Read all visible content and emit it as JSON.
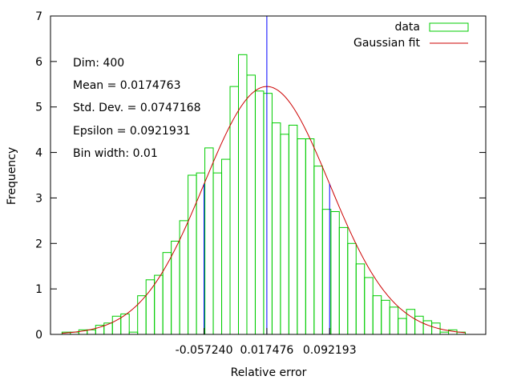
{
  "chart_data": {
    "type": "bar",
    "xlabel": "Relative error",
    "ylabel": "Frequency",
    "xlim": [
      -0.24,
      0.278
    ],
    "ylim": [
      0,
      7
    ],
    "yticks": [
      "0",
      "1",
      "2",
      "3",
      "4",
      "5",
      "6",
      "7"
    ],
    "xticks": [
      {
        "value": -0.05724,
        "label": "-0.057240"
      },
      {
        "value": 0.017476,
        "label": "0.017476"
      },
      {
        "value": 0.092193,
        "label": "0.092193"
      }
    ],
    "bin_width": 0.01,
    "bin_start": -0.2263,
    "series": [
      {
        "name": "data",
        "type": "histogram",
        "color": "#00cc00",
        "values": [
          0.05,
          0.05,
          0.1,
          0.1,
          0.2,
          0.25,
          0.4,
          0.45,
          0.05,
          0.85,
          1.2,
          1.3,
          1.8,
          2.05,
          2.5,
          3.5,
          3.55,
          4.1,
          3.55,
          3.85,
          5.45,
          6.15,
          5.7,
          5.35,
          5.3,
          4.65,
          4.4,
          4.6,
          4.3,
          4.3,
          3.7,
          2.75,
          2.7,
          2.35,
          2.0,
          1.55,
          1.25,
          0.85,
          0.75,
          0.6,
          0.35,
          0.55,
          0.4,
          0.3,
          0.25,
          0.05,
          0.1,
          0.05
        ]
      },
      {
        "name": "Gaussian fit",
        "type": "line",
        "color": "#cc0000",
        "mean": 0.0174763,
        "std": 0.0747168,
        "peak": 5.45
      }
    ],
    "vertical_lines": [
      {
        "x": 0.017476,
        "color": "#0000ff",
        "to": "top"
      },
      {
        "x": -0.05724,
        "color": "#0000ff",
        "to": "curve"
      },
      {
        "x": 0.092193,
        "color": "#0000ff",
        "to": "curve"
      }
    ],
    "annotations": [
      "Dim: 400",
      "Mean = 0.0174763",
      "Std. Dev. = 0.0747168",
      "Epsilon = 0.0921931",
      "Bin width: 0.01"
    ],
    "legend_position": "top-right"
  }
}
